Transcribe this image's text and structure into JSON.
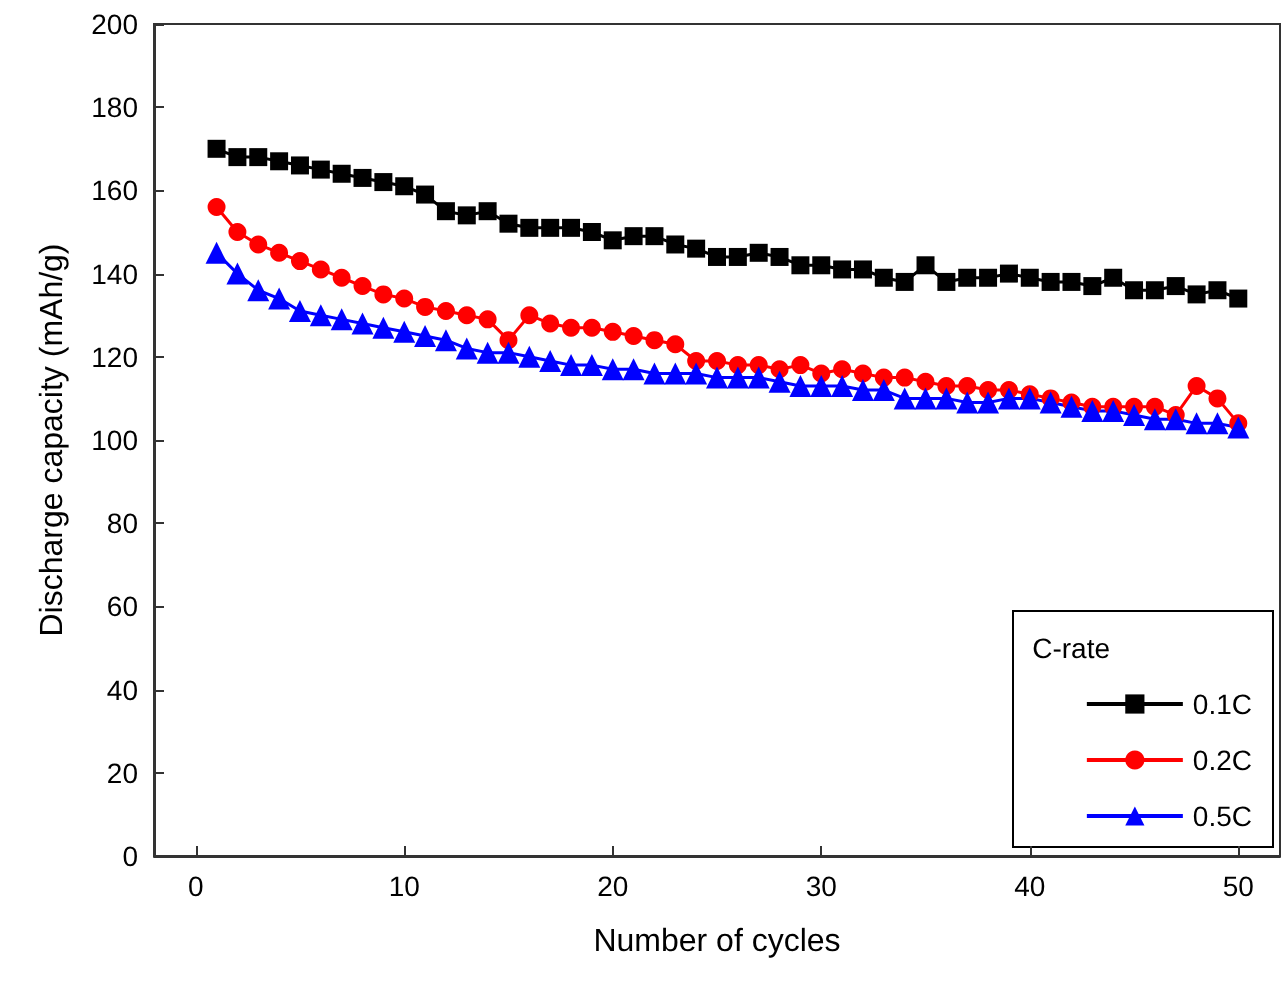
{
  "chart_data": {
    "type": "line",
    "xlabel": "Number of cycles",
    "ylabel": "Discharge capacity (mAh/g)",
    "legend_title": "C-rate",
    "legend": "bottom right",
    "grid": false,
    "x": [
      1,
      2,
      3,
      4,
      5,
      6,
      7,
      8,
      9,
      10,
      11,
      12,
      13,
      14,
      15,
      16,
      17,
      18,
      19,
      20,
      21,
      22,
      23,
      24,
      25,
      26,
      27,
      28,
      29,
      30,
      31,
      32,
      33,
      34,
      35,
      36,
      37,
      38,
      39,
      40,
      41,
      42,
      43,
      44,
      45,
      46,
      47,
      48,
      49,
      50
    ],
    "xlim": [
      -2,
      52
    ],
    "xticks": [
      0,
      10,
      20,
      30,
      40,
      50
    ],
    "ylim": [
      0,
      200
    ],
    "yticks": [
      0,
      20,
      40,
      60,
      80,
      100,
      120,
      140,
      160,
      180,
      200
    ],
    "series": [
      {
        "name": "0.1C",
        "color": "#000000",
        "marker": "square",
        "values": [
          170,
          168,
          168,
          167,
          166,
          165,
          164,
          163,
          162,
          161,
          159,
          155,
          154,
          155,
          152,
          151,
          151,
          151,
          150,
          148,
          149,
          149,
          147,
          146,
          144,
          144,
          145,
          144,
          142,
          142,
          141,
          141,
          139,
          138,
          142,
          138,
          139,
          139,
          140,
          139,
          138,
          138,
          137,
          139,
          136,
          136,
          137,
          135,
          136,
          134
        ]
      },
      {
        "name": "0.2C",
        "color": "#ff0000",
        "marker": "circle",
        "values": [
          156,
          150,
          147,
          145,
          143,
          141,
          139,
          137,
          135,
          134,
          132,
          131,
          130,
          129,
          124,
          130,
          128,
          127,
          127,
          126,
          125,
          124,
          123,
          119,
          119,
          118,
          118,
          117,
          118,
          116,
          117,
          116,
          115,
          115,
          114,
          113,
          113,
          112,
          112,
          111,
          110,
          109,
          108,
          108,
          108,
          108,
          106,
          113,
          110,
          104
        ]
      },
      {
        "name": "0.5C",
        "color": "#0000ff",
        "marker": "triangle",
        "values": [
          145,
          140,
          136,
          134,
          131,
          130,
          129,
          128,
          127,
          126,
          125,
          124,
          122,
          121,
          121,
          120,
          119,
          118,
          118,
          117,
          117,
          116,
          116,
          116,
          115,
          115,
          115,
          114,
          113,
          113,
          113,
          112,
          112,
          110,
          110,
          110,
          109,
          109,
          110,
          110,
          109,
          108,
          107,
          107,
          106,
          105,
          105,
          104,
          104,
          103
        ]
      }
    ]
  }
}
